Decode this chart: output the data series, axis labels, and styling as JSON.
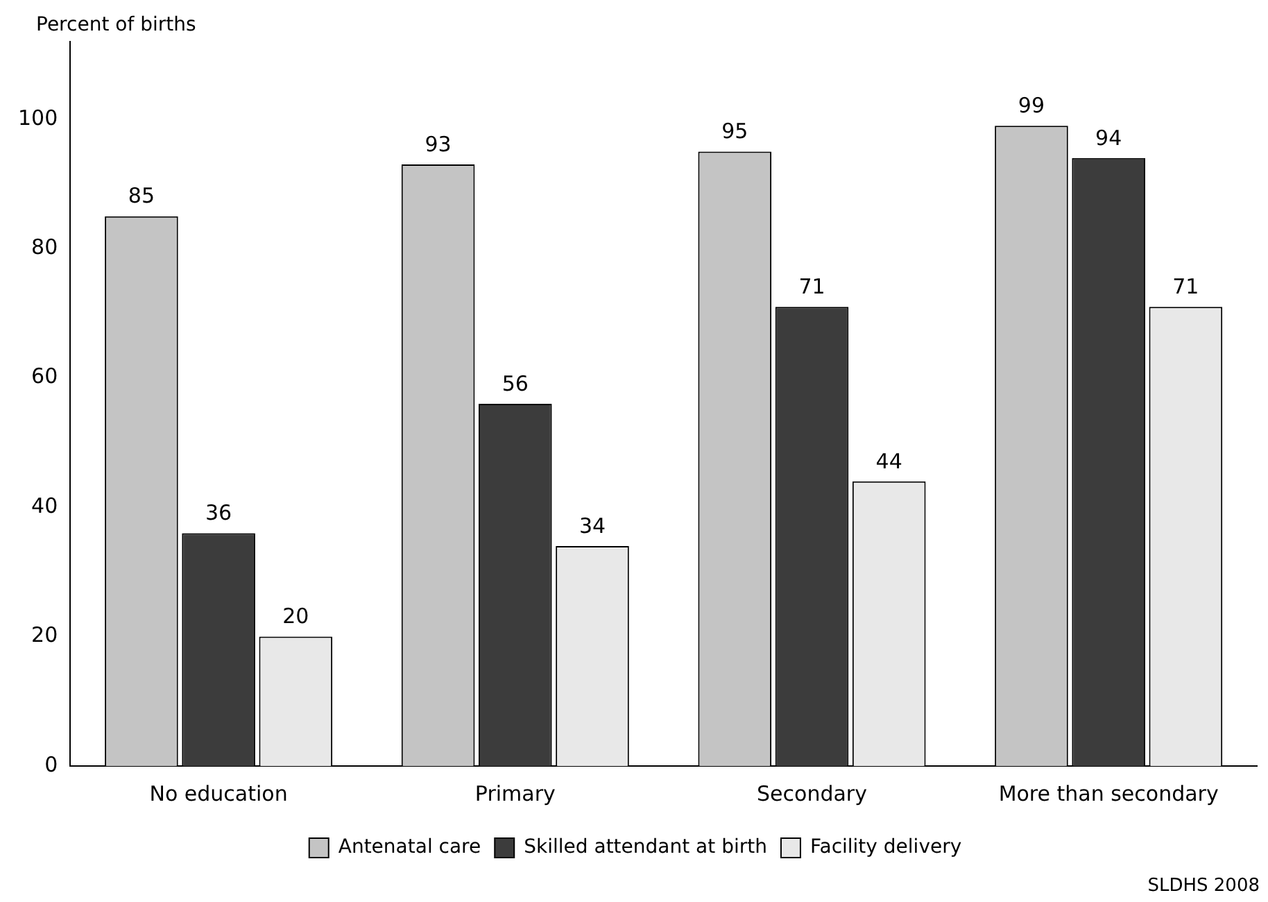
{
  "chart_data": {
    "type": "bar",
    "ylabel": "Percent of births",
    "categories": [
      "No education",
      "Primary",
      "Secondary",
      "More than secondary"
    ],
    "series": [
      {
        "name": "Antenatal care",
        "color": "#c4c4c4",
        "values": [
          85,
          93,
          95,
          99
        ]
      },
      {
        "name": "Skilled attendant at birth",
        "color": "#3c3c3c",
        "values": [
          36,
          56,
          71,
          94
        ]
      },
      {
        "name": "Facility delivery",
        "color": "#e8e8e8",
        "values": [
          20,
          34,
          44,
          71
        ]
      }
    ],
    "ylim": [
      0,
      112
    ],
    "yticks": [
      0,
      20,
      40,
      60,
      80,
      100
    ],
    "grid": false,
    "legend": "bottom",
    "data_labels": true,
    "annotations": [
      "SLDHS 2008"
    ]
  }
}
